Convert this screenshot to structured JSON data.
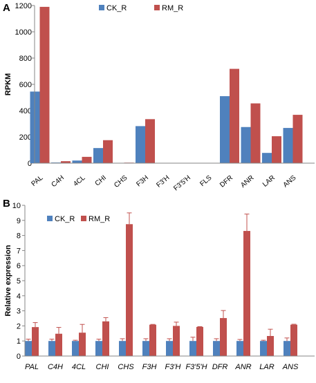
{
  "panels": {
    "a_letter": "A",
    "b_letter": "B"
  },
  "colors": {
    "ck": "#4F81BD",
    "rm": "#C0504D",
    "axis": "#868686",
    "error": "#C0504D"
  },
  "chart_data": [
    {
      "type": "bar",
      "panel": "A",
      "ylabel": "RPKM",
      "xlabel": "",
      "ylim": [
        0,
        1200
      ],
      "yticks": [
        0,
        200,
        400,
        600,
        800,
        1000,
        1200
      ],
      "grid": false,
      "legend_position": "top-center",
      "categories": [
        "PAL",
        "C4H",
        "4CL",
        "CHI",
        "CHS",
        "F3H",
        "F3'H",
        "F3'5'H",
        "FLS",
        "DFR",
        "ANR",
        "LAR",
        "ANS"
      ],
      "series": [
        {
          "name": "CK_R",
          "values": [
            545,
            5,
            20,
            115,
            2,
            282,
            0,
            0,
            0,
            510,
            275,
            78,
            268
          ]
        },
        {
          "name": "RM_R",
          "values": [
            1190,
            15,
            48,
            175,
            4,
            335,
            0,
            0,
            0,
            718,
            455,
            205,
            368
          ]
        }
      ]
    },
    {
      "type": "bar",
      "panel": "B",
      "ylabel": "Relative expression",
      "xlabel": "",
      "ylim": [
        0,
        10
      ],
      "yticks": [
        0,
        1,
        2,
        3,
        4,
        5,
        6,
        7,
        8,
        9,
        10
      ],
      "grid": false,
      "legend_position": "top-left",
      "categories": [
        "PAL",
        "C4H",
        "4CL",
        "CHI",
        "CHS",
        "F3H",
        "F3'H",
        "F3'5'H",
        "DFR",
        "ANR",
        "LAR",
        "ANS"
      ],
      "series": [
        {
          "name": "CK_R",
          "values": [
            1,
            1,
            1,
            1,
            1,
            1,
            1,
            1,
            1,
            1,
            1,
            1
          ],
          "errors": [
            0.12,
            0.12,
            0.05,
            0.12,
            0.15,
            0.15,
            0.15,
            0.25,
            0.15,
            0.1,
            0.05,
            0.2
          ]
        },
        {
          "name": "RM_R",
          "values": [
            1.92,
            1.48,
            1.55,
            2.3,
            8.75,
            2.08,
            2.0,
            1.93,
            2.52,
            8.3,
            1.33,
            2.08
          ],
          "errors": [
            0.3,
            0.42,
            0.55,
            0.25,
            0.75,
            0.02,
            0.25,
            0.02,
            0.5,
            1.12,
            0.45,
            0.03
          ]
        }
      ]
    }
  ]
}
